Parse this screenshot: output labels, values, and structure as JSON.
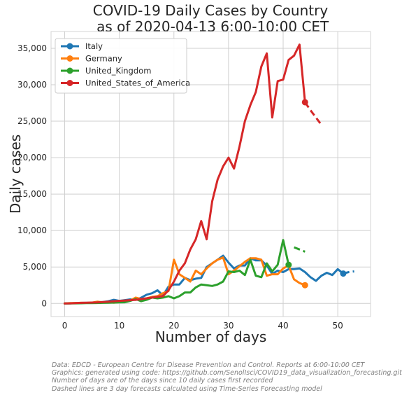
{
  "chart_data": {
    "type": "line",
    "title": "COVID-19 Daily Cases by Country\n as of 2020-04-13 6:00-10:00 CET",
    "xlabel": "Number of days",
    "ylabel": "Daily cases",
    "xlim": [
      -2.5,
      56
    ],
    "ylim": [
      -1800,
      37300
    ],
    "x_ticks": [
      0,
      10,
      20,
      30,
      40,
      50
    ],
    "x_tick_labels": [
      "0",
      "10",
      "20",
      "30",
      "40",
      "50"
    ],
    "y_ticks": [
      0,
      5000,
      10000,
      15000,
      20000,
      25000,
      30000,
      35000
    ],
    "y_tick_labels": [
      "0",
      "5,000",
      "10,000",
      "15,000",
      "20,000",
      "25,000",
      "30,000",
      "35,000"
    ],
    "grid": true,
    "legend_position": "top-left",
    "series": [
      {
        "name": "Italy",
        "color": "#1f77b4",
        "x": [
          0,
          1,
          2,
          3,
          4,
          5,
          6,
          7,
          8,
          9,
          10,
          11,
          12,
          13,
          14,
          15,
          16,
          17,
          18,
          19,
          20,
          21,
          22,
          23,
          24,
          25,
          26,
          27,
          28,
          29,
          30,
          31,
          32,
          33,
          34,
          35,
          36,
          37,
          38,
          39,
          40,
          41,
          42,
          43,
          44,
          45,
          46,
          47,
          48,
          49,
          50,
          51
        ],
        "values": [
          0,
          20,
          50,
          70,
          80,
          90,
          120,
          200,
          300,
          500,
          350,
          450,
          550,
          500,
          780,
          1200,
          1400,
          1800,
          1100,
          2300,
          2600,
          2600,
          3500,
          3200,
          3400,
          3500,
          5000,
          5500,
          6000,
          6550,
          5600,
          4800,
          5200,
          5200,
          6200,
          5900,
          5900,
          5200,
          4050,
          4500,
          4300,
          4700,
          4700,
          4800,
          4300,
          3600,
          3100,
          3800,
          4200,
          3900,
          4700,
          4100
        ],
        "forecast": {
          "x": [
            51,
            52,
            53
          ],
          "values": [
            4100,
            4300,
            4400
          ]
        },
        "end_marker": {
          "x": 51,
          "value": 4100
        }
      },
      {
        "name": "Germany",
        "color": "#ff7f0e",
        "x": [
          0,
          1,
          2,
          3,
          4,
          5,
          6,
          7,
          8,
          9,
          10,
          11,
          12,
          13,
          14,
          15,
          16,
          17,
          18,
          19,
          20,
          21,
          22,
          23,
          24,
          25,
          26,
          27,
          28,
          29,
          30,
          31,
          32,
          33,
          34,
          35,
          36,
          37,
          38,
          39,
          40,
          41,
          42,
          43,
          44
        ],
        "values": [
          0,
          40,
          60,
          80,
          70,
          110,
          250,
          150,
          200,
          100,
          200,
          300,
          400,
          800,
          600,
          700,
          900,
          1000,
          1400,
          1700,
          6000,
          4000,
          3500,
          3000,
          4500,
          4000,
          4800,
          5500,
          6000,
          6300,
          4000,
          4500,
          5100,
          5700,
          6200,
          6200,
          6000,
          3800,
          4000,
          4000,
          4800,
          5200,
          3300,
          2800,
          2500
        ],
        "end_marker": {
          "x": 44,
          "value": 2500
        }
      },
      {
        "name": "United_Kingdom",
        "color": "#2ca02c",
        "x": [
          0,
          1,
          2,
          3,
          4,
          5,
          6,
          7,
          8,
          9,
          10,
          11,
          12,
          13,
          14,
          15,
          16,
          17,
          18,
          19,
          20,
          21,
          22,
          23,
          24,
          25,
          26,
          27,
          28,
          29,
          30,
          31,
          32,
          33,
          34,
          35,
          36,
          37,
          38,
          39,
          40,
          41
        ],
        "values": [
          0,
          10,
          20,
          30,
          40,
          50,
          60,
          80,
          100,
          120,
          140,
          160,
          350,
          600,
          300,
          500,
          800,
          700,
          800,
          1000,
          700,
          1000,
          1500,
          1500,
          2200,
          2600,
          2500,
          2400,
          2600,
          3000,
          4400,
          4300,
          4500,
          3900,
          6000,
          3800,
          3600,
          5500,
          4400,
          5300,
          8700,
          5300
        ],
        "forecast": {
          "x": [
            42,
            43,
            44
          ],
          "values": [
            7700,
            7400,
            7100
          ]
        },
        "end_marker": {
          "x": 41,
          "value": 5300
        }
      },
      {
        "name": "United_States_of_America",
        "color": "#d62728",
        "x": [
          0,
          1,
          2,
          3,
          4,
          5,
          6,
          7,
          8,
          9,
          10,
          11,
          12,
          13,
          14,
          15,
          16,
          17,
          18,
          19,
          20,
          21,
          22,
          23,
          24,
          25,
          26,
          27,
          28,
          29,
          30,
          31,
          32,
          33,
          34,
          35,
          36,
          37,
          38,
          39,
          40,
          41,
          42,
          43,
          44
        ],
        "values": [
          0,
          20,
          50,
          80,
          100,
          120,
          150,
          200,
          250,
          300,
          350,
          400,
          450,
          500,
          600,
          700,
          800,
          900,
          1000,
          1800,
          3000,
          4500,
          5500,
          7400,
          8800,
          11300,
          8800,
          14000,
          17000,
          18800,
          20000,
          18500,
          21500,
          25000,
          27200,
          29000,
          32500,
          34300,
          25500,
          30500,
          30700,
          33400,
          34000,
          35500,
          27600
        ],
        "forecast": {
          "x": [
            44,
            45,
            46,
            47
          ],
          "values": [
            27600,
            26500,
            25500,
            24500
          ]
        },
        "end_marker": {
          "x": 44,
          "value": 27600
        }
      }
    ]
  },
  "caption_lines": [
    "Data: EDCD - European Centre for Disease Prevention and Control. Reports at 6:00-10:00 CET",
    "Graphics: generated using code: https://github.com/SenolIsci/COVID19_data_visualization_forecasting.git",
    "Number of days are of the days since 10 daily cases first recorded",
    "Dashed lines are 3 day forecasts calculated using Time-Series Forecasting model"
  ]
}
